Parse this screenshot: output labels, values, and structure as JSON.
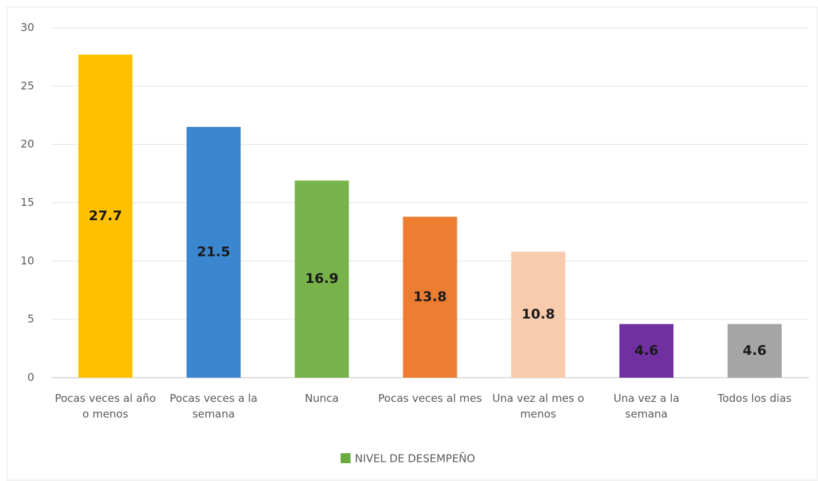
{
  "chart_data": {
    "type": "bar",
    "categories": [
      "Pocas veces al año o menos",
      "Pocas veces a la semana",
      "Nunca",
      "Pocas veces al mes",
      "Una vez al mes o menos",
      "Una vez a la semana",
      "Todos los dias"
    ],
    "series": [
      {
        "name": "NIVEL DE DESEMPEÑO",
        "color": "#6aaa3f",
        "values": [
          27.7,
          21.5,
          16.9,
          13.8,
          10.8,
          4.6,
          4.6
        ],
        "colors": [
          "#ffc000",
          "#3a86cf",
          "#78b24a",
          "#ed7d31",
          "#f8cbad",
          "#7030a0",
          "#a5a5a5"
        ]
      }
    ],
    "ylim": [
      0,
      30
    ],
    "yticks": [
      0,
      5,
      10,
      15,
      20,
      25,
      30
    ],
    "grid": true,
    "legend": "bottom"
  }
}
